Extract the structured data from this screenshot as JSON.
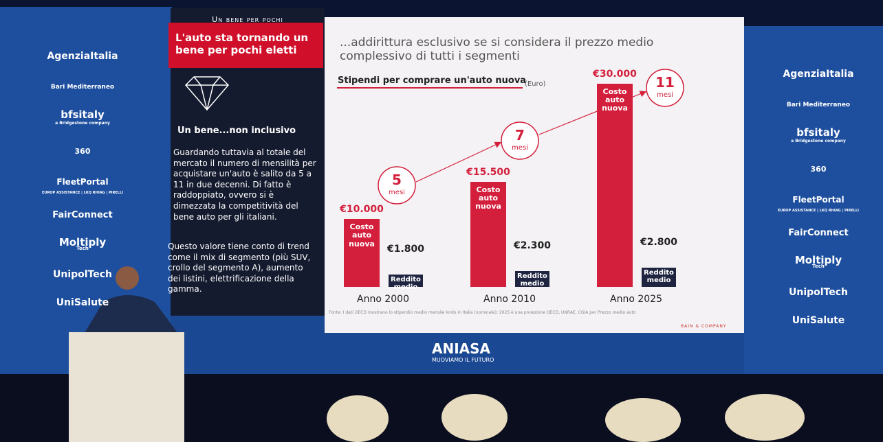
{
  "sponsors": [
    "AgenziaItalia",
    "Bari Mediterraneo",
    "bfsitaly",
    "a Bridgestone company",
    "360",
    "FleetPortal",
    "EUROP ASSISTANCE | LKQ RHIAG | PIRELLI",
    "FairConnect",
    "Moltiply",
    "Tech",
    "UnipolTech",
    "UniSalute"
  ],
  "left_panel": {
    "kicker": "Un bene per pochi",
    "headline": "L'auto sta tornando un bene per pochi eletti",
    "subtitle": "Un bene...non inclusivo",
    "paragraphs": [
      "Guardando tuttavia al totale del mercato il numero di mensilità per acquistare un'auto è salito da 5 a 11 in due decenni. Di fatto è raddoppiato, ovvero si è dimezzata la competitività del bene auto per gli italiani.",
      "Questo valore tiene conto di trend come il mix di segmento (più SUV, crollo del segmento A), aumento dei listini, elettrificazione della gamma."
    ]
  },
  "slide_heading": "...addirittura esclusivo se si considera il prezzo medio complessivo di tutti i segmenti",
  "chart_data": {
    "type": "bar",
    "title": "Stipendi per comprare un'auto nuova",
    "subtitle": "(Euro)",
    "categories": [
      "Anno 2000",
      "Anno 2010",
      "Anno 2025"
    ],
    "series": [
      {
        "name": "Costo auto nuova",
        "color": "#d31f3c",
        "values": [
          10000,
          15500,
          30000
        ],
        "value_labels": [
          "€10.000",
          "€15.500",
          "€30.000"
        ]
      },
      {
        "name": "Reddito medio",
        "color": "#1f2540",
        "values": [
          1800,
          2300,
          2800
        ],
        "value_labels": [
          "€1.800",
          "€2.300",
          "€2.800"
        ]
      }
    ],
    "months": {
      "values": [
        5,
        7,
        11
      ],
      "unit": "mesi",
      "color": "#d31f3c"
    },
    "source": "Fonte: I dati OECD mostrano lo stipendio medio mensile lordo in Italia (nominale); 2025 è una proiezione OECD, UNRAE, CGIA per Prezzo medio auto",
    "credit": "BAIN & COMPANY"
  },
  "footer": {
    "logo": "ANIASA",
    "tagline": "MUOVIAMO IL FUTURO"
  }
}
